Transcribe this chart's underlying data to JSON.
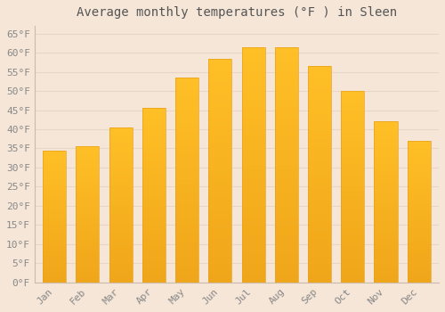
{
  "title": "Average monthly temperatures (°F ) in Sleen",
  "months": [
    "Jan",
    "Feb",
    "Mar",
    "Apr",
    "May",
    "Jun",
    "Jul",
    "Aug",
    "Sep",
    "Oct",
    "Nov",
    "Dec"
  ],
  "values": [
    34.5,
    35.5,
    40.5,
    45.5,
    53.5,
    58.5,
    61.5,
    61.5,
    56.5,
    50.0,
    42.0,
    37.0
  ],
  "bar_color_top": "#FFB733",
  "bar_color_bottom": "#F5A623",
  "background_color": "#F5E6D8",
  "grid_color": "#E8D5C8",
  "text_color": "#888888",
  "title_color": "#555555",
  "ylim": [
    0,
    67
  ],
  "title_fontsize": 10,
  "tick_fontsize": 8,
  "bar_width": 0.7
}
